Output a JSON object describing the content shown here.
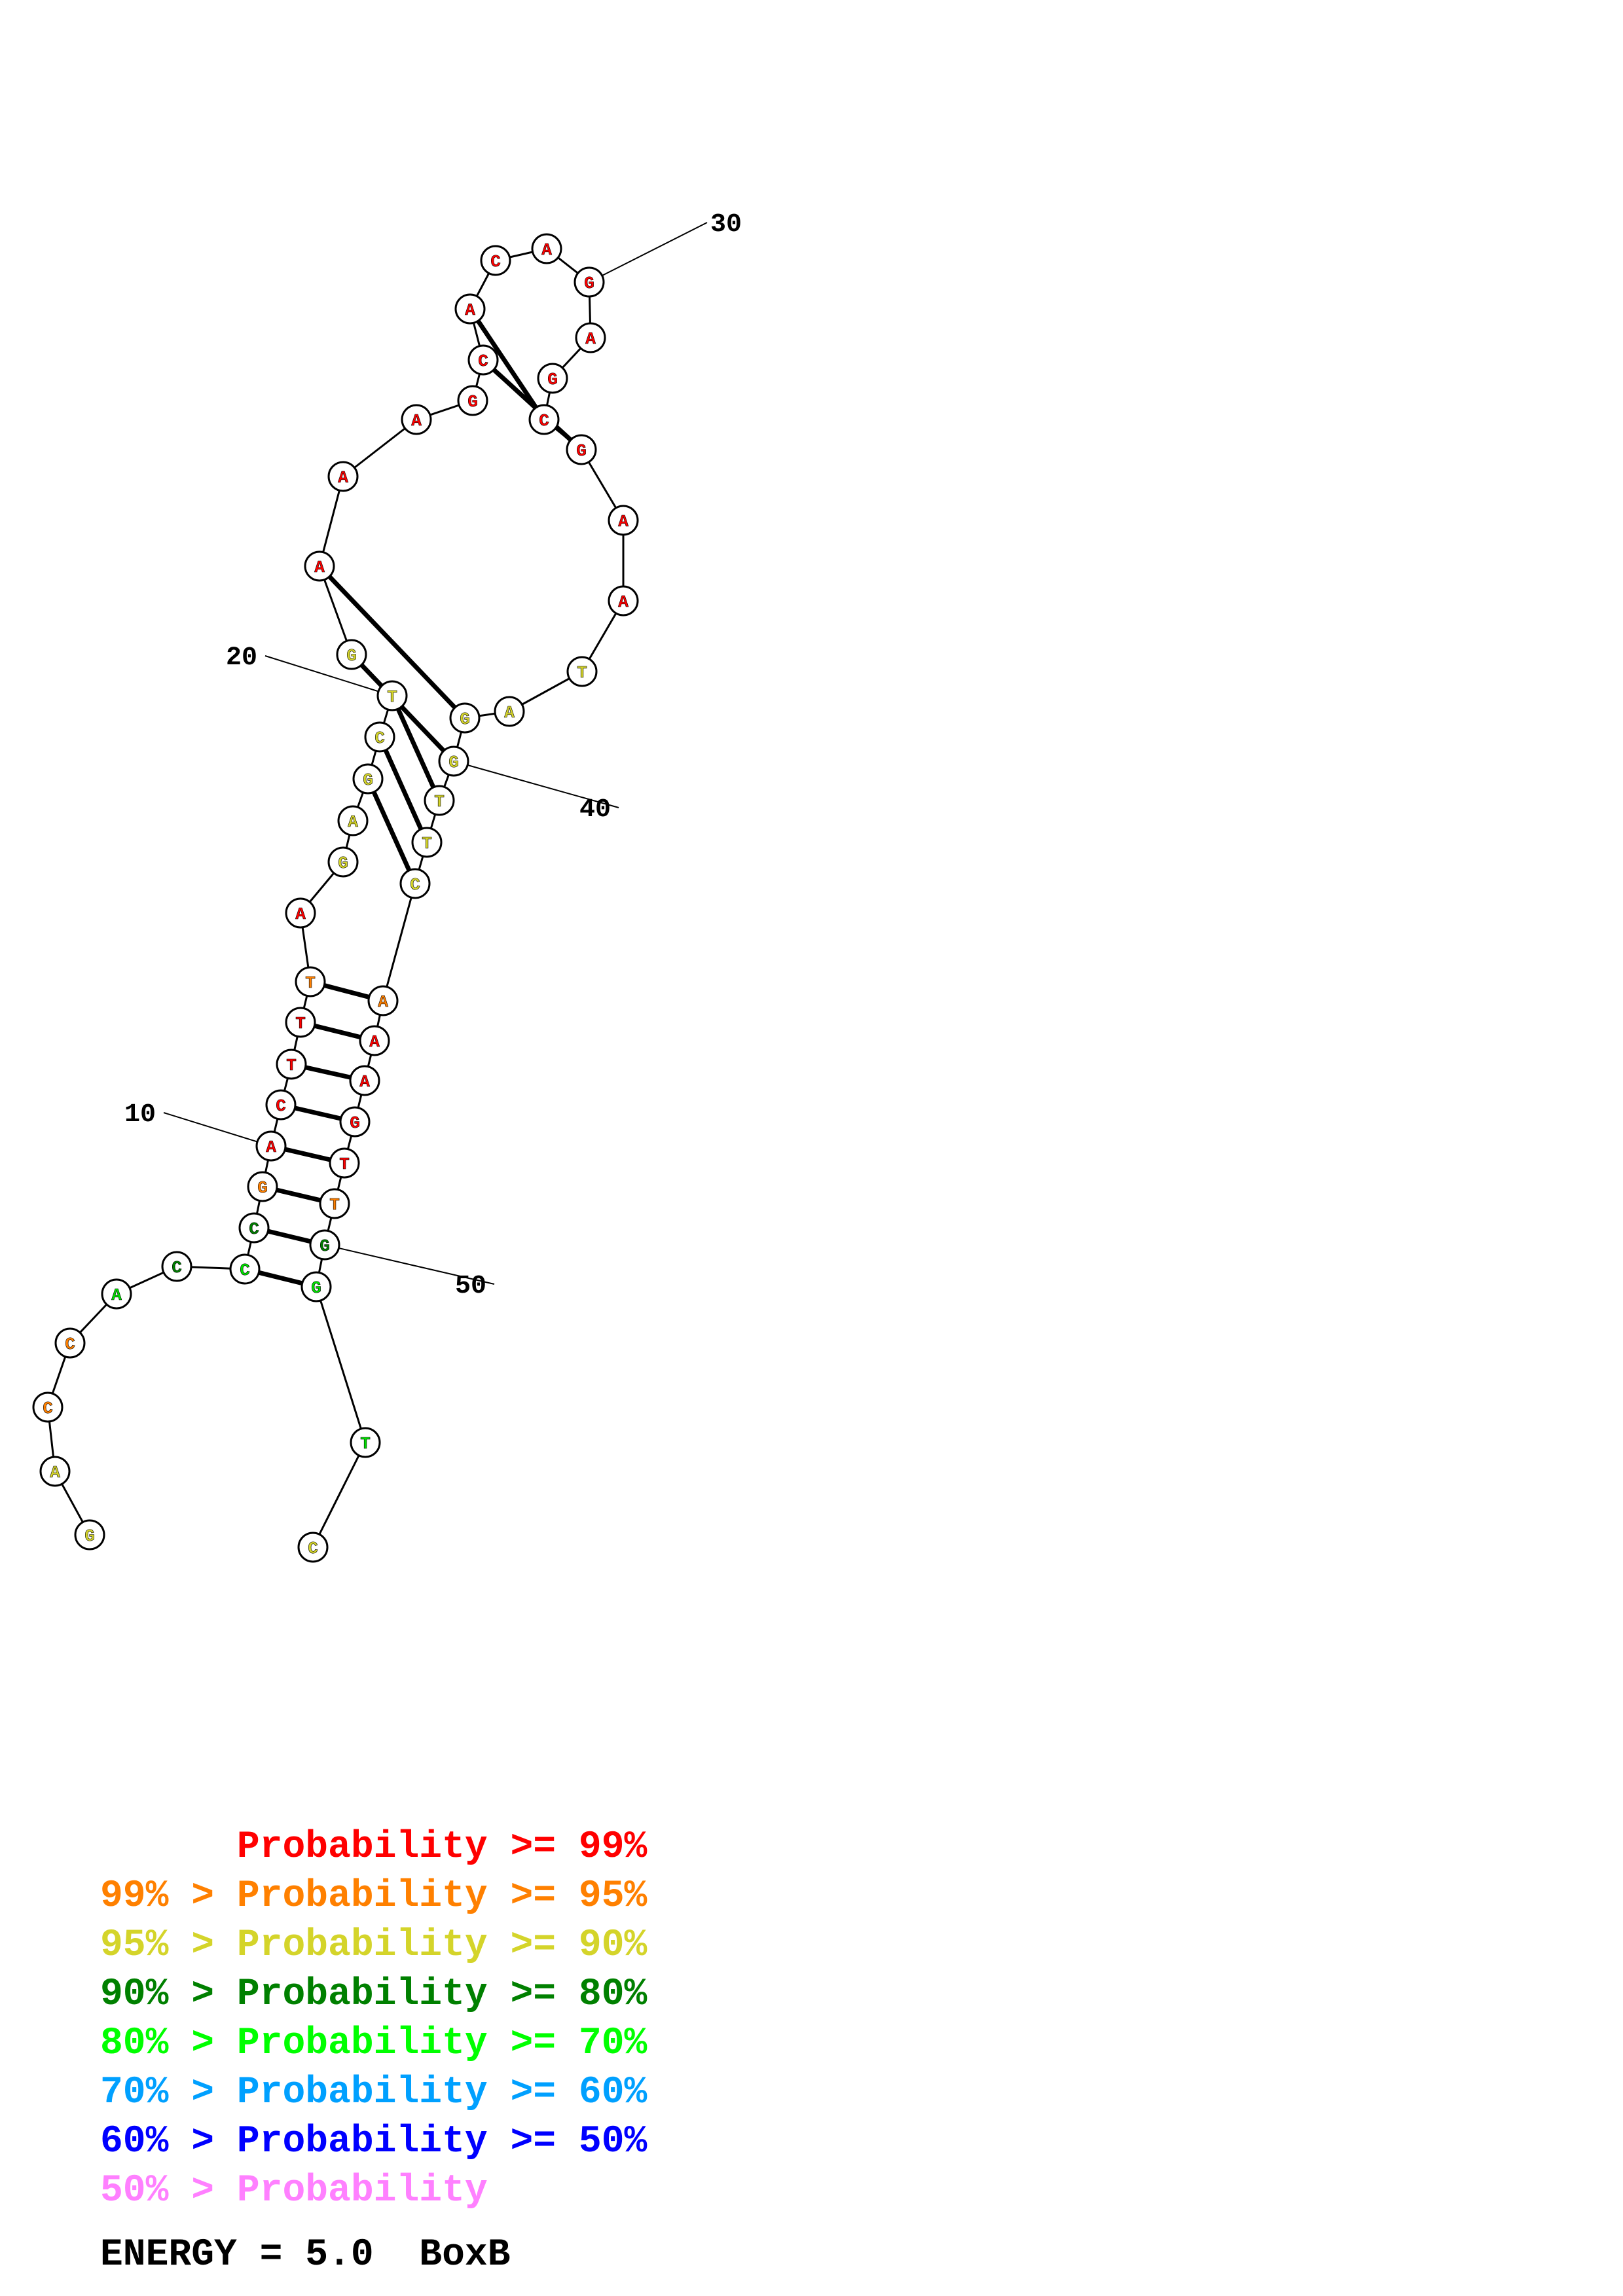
{
  "nucleotides": [
    {
      "index": 1,
      "base": "G",
      "color": "#d4d42a"
    },
    {
      "index": 2,
      "base": "A",
      "color": "#d4d42a"
    },
    {
      "index": 3,
      "base": "C",
      "color": "#ff8000"
    },
    {
      "index": 4,
      "base": "C",
      "color": "#ff8000"
    },
    {
      "index": 5,
      "base": "A",
      "color": "#00e000"
    },
    {
      "index": 6,
      "base": "C",
      "color": "#008000"
    },
    {
      "index": 7,
      "base": "C",
      "color": "#00e000"
    },
    {
      "index": 8,
      "base": "C",
      "color": "#008000"
    },
    {
      "index": 9,
      "base": "G",
      "color": "#ff8000"
    },
    {
      "index": 10,
      "base": "A",
      "color": "#ff0000"
    },
    {
      "index": 11,
      "base": "C",
      "color": "#ff0000"
    },
    {
      "index": 12,
      "base": "T",
      "color": "#ff0000"
    },
    {
      "index": 13,
      "base": "T",
      "color": "#ff0000"
    },
    {
      "index": 14,
      "base": "T",
      "color": "#ff8000"
    },
    {
      "index": 15,
      "base": "A",
      "color": "#ff0000"
    },
    {
      "index": 16,
      "base": "G",
      "color": "#d4d42a"
    },
    {
      "index": 17,
      "base": "A",
      "color": "#d4d42a"
    },
    {
      "index": 18,
      "base": "G",
      "color": "#d4d42a"
    },
    {
      "index": 19,
      "base": "C",
      "color": "#d4d42a"
    },
    {
      "index": 20,
      "base": "T",
      "color": "#d4d42a"
    },
    {
      "index": 21,
      "base": "G",
      "color": "#d4d42a"
    },
    {
      "index": 22,
      "base": "A",
      "color": "#ff0000"
    },
    {
      "index": 23,
      "base": "A",
      "color": "#ff0000"
    },
    {
      "index": 24,
      "base": "A",
      "color": "#ff0000"
    },
    {
      "index": 25,
      "base": "G",
      "color": "#ff0000"
    },
    {
      "index": 26,
      "base": "C",
      "color": "#ff0000"
    },
    {
      "index": 27,
      "base": "A",
      "color": "#ff0000"
    },
    {
      "index": 28,
      "base": "C",
      "color": "#ff0000"
    },
    {
      "index": 29,
      "base": "A",
      "color": "#ff0000"
    },
    {
      "index": 30,
      "base": "G",
      "color": "#ff0000"
    },
    {
      "index": 31,
      "base": "A",
      "color": "#ff0000"
    },
    {
      "index": 32,
      "base": "G",
      "color": "#ff0000"
    },
    {
      "index": 33,
      "base": "C",
      "color": "#ff0000"
    },
    {
      "index": 34,
      "base": "G",
      "color": "#ff0000"
    },
    {
      "index": 35,
      "base": "A",
      "color": "#ff0000"
    },
    {
      "index": 36,
      "base": "A",
      "color": "#ff0000"
    },
    {
      "index": 37,
      "base": "T",
      "color": "#d4d42a"
    },
    {
      "index": 38,
      "base": "A",
      "color": "#d4d42a"
    },
    {
      "index": 39,
      "base": "G",
      "color": "#d4d42a"
    },
    {
      "index": 40,
      "base": "G",
      "color": "#d4d42a"
    },
    {
      "index": 41,
      "base": "T",
      "color": "#d4d42a"
    },
    {
      "index": 42,
      "base": "T",
      "color": "#d4d42a"
    },
    {
      "index": 43,
      "base": "C",
      "color": "#d4d42a"
    },
    {
      "index": 44,
      "base": "A",
      "color": "#ff8000"
    },
    {
      "index": 45,
      "base": "A",
      "color": "#ff0000"
    },
    {
      "index": 46,
      "base": "A",
      "color": "#ff0000"
    },
    {
      "index": 47,
      "base": "G",
      "color": "#ff0000"
    },
    {
      "index": 48,
      "base": "T",
      "color": "#ff0000"
    },
    {
      "index": 49,
      "base": "T",
      "color": "#ff8000"
    },
    {
      "index": 50,
      "base": "G",
      "color": "#008000"
    },
    {
      "index": 51,
      "base": "G",
      "color": "#00e000"
    },
    {
      "index": 52,
      "base": "T",
      "color": "#00e000"
    },
    {
      "index": 53,
      "base": "C",
      "color": "#d4d42a"
    }
  ],
  "base_pairs": [
    [
      7,
      51
    ],
    [
      8,
      50
    ],
    [
      9,
      49
    ],
    [
      10,
      48
    ],
    [
      11,
      47
    ],
    [
      12,
      46
    ],
    [
      13,
      45
    ],
    [
      14,
      44
    ],
    [
      18,
      43
    ],
    [
      19,
      42
    ],
    [
      20,
      41
    ],
    [
      21,
      40
    ],
    [
      22,
      39
    ],
    [
      26,
      34
    ],
    [
      27,
      33
    ]
  ],
  "tick_labels": [
    "10",
    "20",
    "30",
    "40",
    "50"
  ],
  "legend": [
    {
      "text": "      Probability >= 99%",
      "color": "#ff0000"
    },
    {
      "text": "99% > Probability >= 95%",
      "color": "#ff8000"
    },
    {
      "text": "95% > Probability >= 90%",
      "color": "#d4d42a"
    },
    {
      "text": "90% > Probability >= 80%",
      "color": "#008000"
    },
    {
      "text": "80% > Probability >= 70%",
      "color": "#00ff00"
    },
    {
      "text": "70% > Probability >= 60%",
      "color": "#00a0ff"
    },
    {
      "text": "60% > Probability >= 50%",
      "color": "#0000ff"
    },
    {
      "text": "50% > Probability",
      "color": "#ff80ff"
    }
  ],
  "energy_label": "ENERGY = 5.0  BoxB"
}
